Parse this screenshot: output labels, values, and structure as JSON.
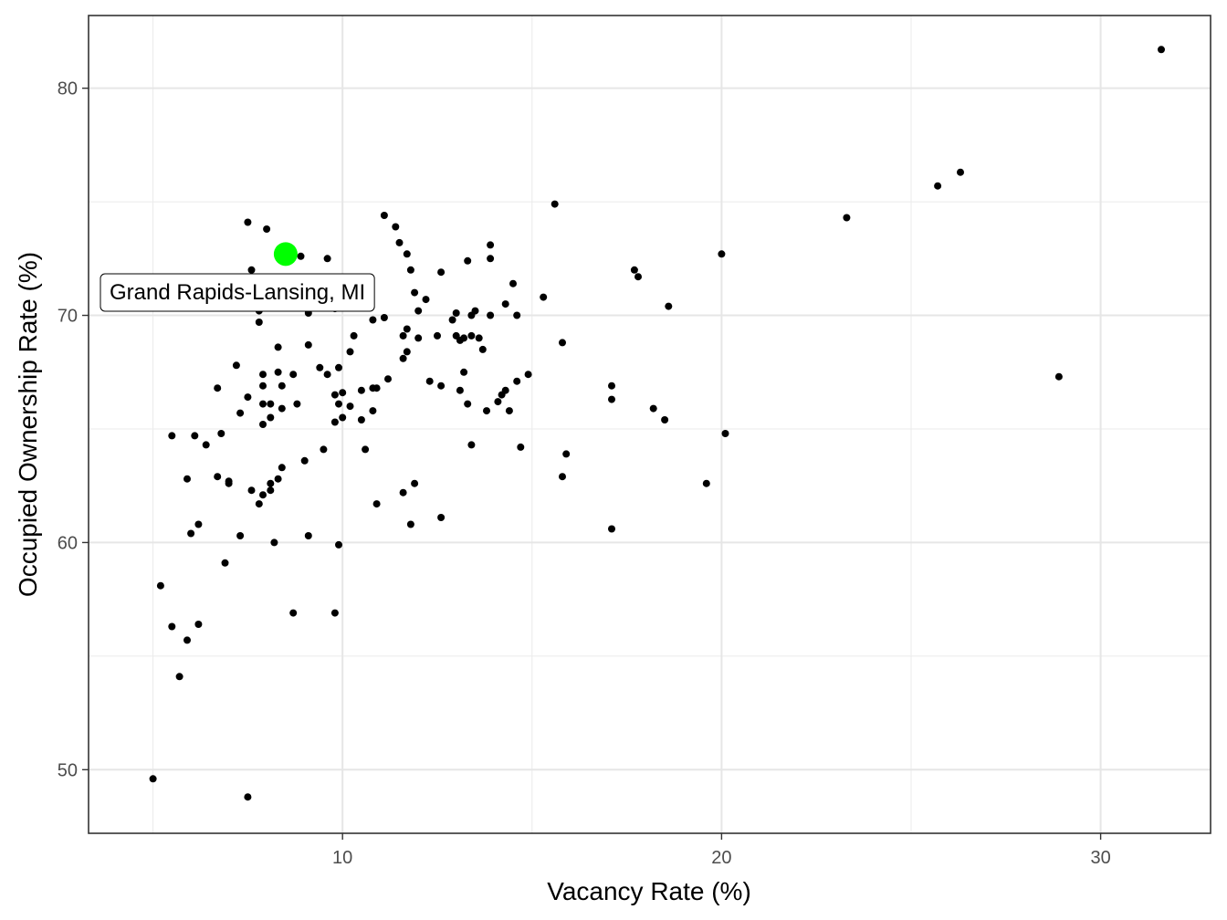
{
  "chart_data": {
    "type": "scatter",
    "xlabel": "Vacancy Rate (%)",
    "ylabel": "Occupied Ownership Rate (%)",
    "xlim": [
      3.3,
      32.9
    ],
    "ylim": [
      47.2,
      83.2
    ],
    "x_ticks": [
      10,
      20,
      30
    ],
    "y_ticks": [
      50,
      60,
      70,
      80
    ],
    "x_minor": [
      5,
      15,
      25
    ],
    "y_minor": [
      55,
      65,
      75
    ],
    "grid": true,
    "theme": "bw",
    "point_color": "#000000",
    "highlight_color": "#00ff00",
    "highlight": {
      "label": "Grand Rapids-Lansing, MI",
      "x": 8.5,
      "y": 72.7
    },
    "points": [
      [
        31.6,
        81.7
      ],
      [
        26.3,
        76.3
      ],
      [
        25.7,
        75.7
      ],
      [
        23.3,
        74.3
      ],
      [
        15.6,
        74.9
      ],
      [
        20.0,
        72.7
      ],
      [
        17.7,
        72.0
      ],
      [
        17.8,
        71.7
      ],
      [
        18.6,
        70.4
      ],
      [
        15.3,
        70.8
      ],
      [
        28.9,
        67.3
      ],
      [
        15.8,
        68.8
      ],
      [
        14.9,
        67.4
      ],
      [
        17.1,
        66.9
      ],
      [
        17.1,
        66.3
      ],
      [
        18.2,
        65.9
      ],
      [
        18.5,
        65.4
      ],
      [
        20.1,
        64.8
      ],
      [
        15.9,
        63.9
      ],
      [
        14.7,
        64.2
      ],
      [
        15.8,
        62.9
      ],
      [
        19.6,
        62.6
      ],
      [
        17.1,
        60.6
      ],
      [
        7.5,
        74.1
      ],
      [
        8.0,
        73.8
      ],
      [
        8.9,
        72.6
      ],
      [
        9.6,
        72.5
      ],
      [
        7.6,
        72.0
      ],
      [
        7.8,
        70.2
      ],
      [
        7.8,
        69.7
      ],
      [
        8.5,
        70.4
      ],
      [
        9.1,
        70.1
      ],
      [
        9.8,
        70.3
      ],
      [
        8.3,
        68.6
      ],
      [
        9.1,
        68.7
      ],
      [
        9.4,
        67.7
      ],
      [
        9.6,
        67.4
      ],
      [
        9.9,
        67.7
      ],
      [
        7.2,
        67.8
      ],
      [
        7.9,
        67.4
      ],
      [
        8.3,
        67.5
      ],
      [
        8.7,
        67.4
      ],
      [
        7.9,
        66.9
      ],
      [
        8.4,
        66.9
      ],
      [
        7.5,
        66.4
      ],
      [
        7.9,
        66.1
      ],
      [
        8.1,
        66.1
      ],
      [
        8.8,
        66.1
      ],
      [
        8.4,
        65.9
      ],
      [
        8.1,
        65.5
      ],
      [
        7.3,
        65.7
      ],
      [
        7.9,
        65.2
      ],
      [
        6.7,
        66.8
      ],
      [
        6.8,
        64.8
      ],
      [
        6.4,
        64.3
      ],
      [
        6.1,
        64.7
      ],
      [
        5.5,
        64.7
      ],
      [
        9.9,
        66.1
      ],
      [
        10.0,
        66.6
      ],
      [
        10.2,
        66.0
      ],
      [
        9.8,
        66.5
      ],
      [
        10.0,
        65.5
      ],
      [
        9.8,
        65.3
      ],
      [
        8.4,
        63.3
      ],
      [
        9.0,
        63.6
      ],
      [
        9.5,
        64.1
      ],
      [
        10.6,
        64.1
      ],
      [
        6.7,
        62.9
      ],
      [
        7.0,
        62.7
      ],
      [
        7.0,
        62.6
      ],
      [
        7.6,
        62.3
      ],
      [
        7.9,
        62.1
      ],
      [
        8.1,
        62.6
      ],
      [
        8.1,
        62.3
      ],
      [
        8.3,
        62.8
      ],
      [
        7.8,
        61.7
      ],
      [
        5.9,
        62.8
      ],
      [
        6.2,
        60.8
      ],
      [
        6.0,
        60.4
      ],
      [
        7.3,
        60.3
      ],
      [
        8.2,
        60.0
      ],
      [
        9.1,
        60.3
      ],
      [
        9.9,
        59.9
      ],
      [
        6.9,
        59.1
      ],
      [
        5.2,
        58.1
      ],
      [
        5.5,
        56.3
      ],
      [
        6.2,
        56.4
      ],
      [
        5.9,
        55.7
      ],
      [
        8.7,
        56.9
      ],
      [
        9.8,
        56.9
      ],
      [
        5.7,
        54.1
      ],
      [
        5.0,
        49.6
      ],
      [
        7.5,
        48.8
      ],
      [
        11.1,
        74.4
      ],
      [
        11.4,
        73.9
      ],
      [
        11.5,
        73.2
      ],
      [
        11.7,
        72.7
      ],
      [
        11.8,
        72.0
      ],
      [
        12.6,
        71.9
      ],
      [
        13.9,
        73.1
      ],
      [
        13.9,
        72.5
      ],
      [
        13.3,
        72.4
      ],
      [
        14.5,
        71.4
      ],
      [
        11.9,
        71.0
      ],
      [
        12.2,
        70.7
      ],
      [
        10.2,
        70.6
      ],
      [
        10.8,
        69.8
      ],
      [
        11.1,
        69.9
      ],
      [
        12.0,
        70.2
      ],
      [
        12.9,
        69.8
      ],
      [
        13.0,
        70.1
      ],
      [
        13.4,
        70.0
      ],
      [
        13.5,
        70.2
      ],
      [
        13.9,
        70.0
      ],
      [
        14.3,
        70.5
      ],
      [
        14.6,
        70.0
      ],
      [
        11.7,
        69.4
      ],
      [
        11.6,
        69.1
      ],
      [
        12.0,
        69.0
      ],
      [
        12.5,
        69.1
      ],
      [
        13.0,
        69.1
      ],
      [
        13.1,
        68.9
      ],
      [
        13.2,
        69.0
      ],
      [
        13.4,
        69.1
      ],
      [
        13.6,
        69.0
      ],
      [
        10.3,
        69.1
      ],
      [
        10.2,
        68.4
      ],
      [
        11.7,
        68.4
      ],
      [
        11.6,
        68.1
      ],
      [
        13.7,
        68.5
      ],
      [
        13.2,
        67.5
      ],
      [
        11.2,
        67.2
      ],
      [
        12.3,
        67.1
      ],
      [
        12.6,
        66.9
      ],
      [
        10.8,
        66.8
      ],
      [
        10.5,
        66.7
      ],
      [
        10.9,
        66.8
      ],
      [
        13.1,
        66.7
      ],
      [
        14.3,
        66.7
      ],
      [
        14.2,
        66.5
      ],
      [
        14.1,
        66.2
      ],
      [
        14.6,
        67.1
      ],
      [
        13.3,
        66.1
      ],
      [
        13.8,
        65.8
      ],
      [
        14.4,
        65.8
      ],
      [
        10.8,
        65.8
      ],
      [
        10.5,
        65.4
      ],
      [
        13.4,
        64.3
      ],
      [
        10.9,
        61.7
      ],
      [
        11.6,
        62.2
      ],
      [
        11.9,
        62.6
      ],
      [
        12.6,
        61.1
      ],
      [
        11.8,
        60.8
      ]
    ]
  }
}
